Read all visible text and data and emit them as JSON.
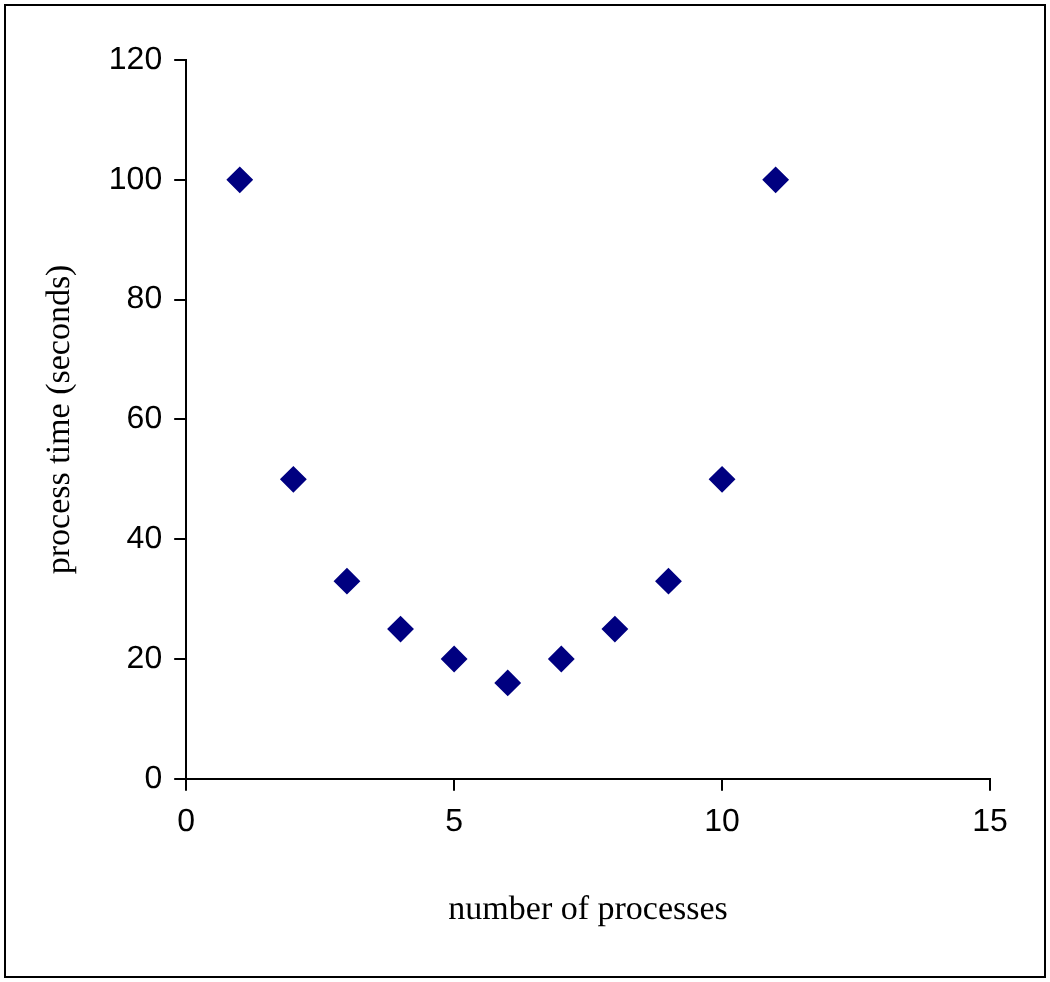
{
  "chart_data": {
    "type": "scatter",
    "xlabel": "number of processes",
    "ylabel": "process time (seconds)",
    "x": [
      1,
      2,
      3,
      4,
      5,
      6,
      7,
      8,
      9,
      10,
      11
    ],
    "series": [
      {
        "color": "#000080",
        "values": [
          100,
          50,
          33,
          25,
          20,
          16,
          20,
          25,
          33,
          50,
          100
        ]
      }
    ],
    "xlim": [
      0,
      15
    ],
    "xticks": [
      0,
      5,
      10,
      15
    ],
    "ylim": [
      0,
      120
    ],
    "yticks": [
      0,
      20,
      40,
      60,
      80,
      100,
      120
    ],
    "grid": false,
    "legend": false,
    "marker": "diamond"
  }
}
